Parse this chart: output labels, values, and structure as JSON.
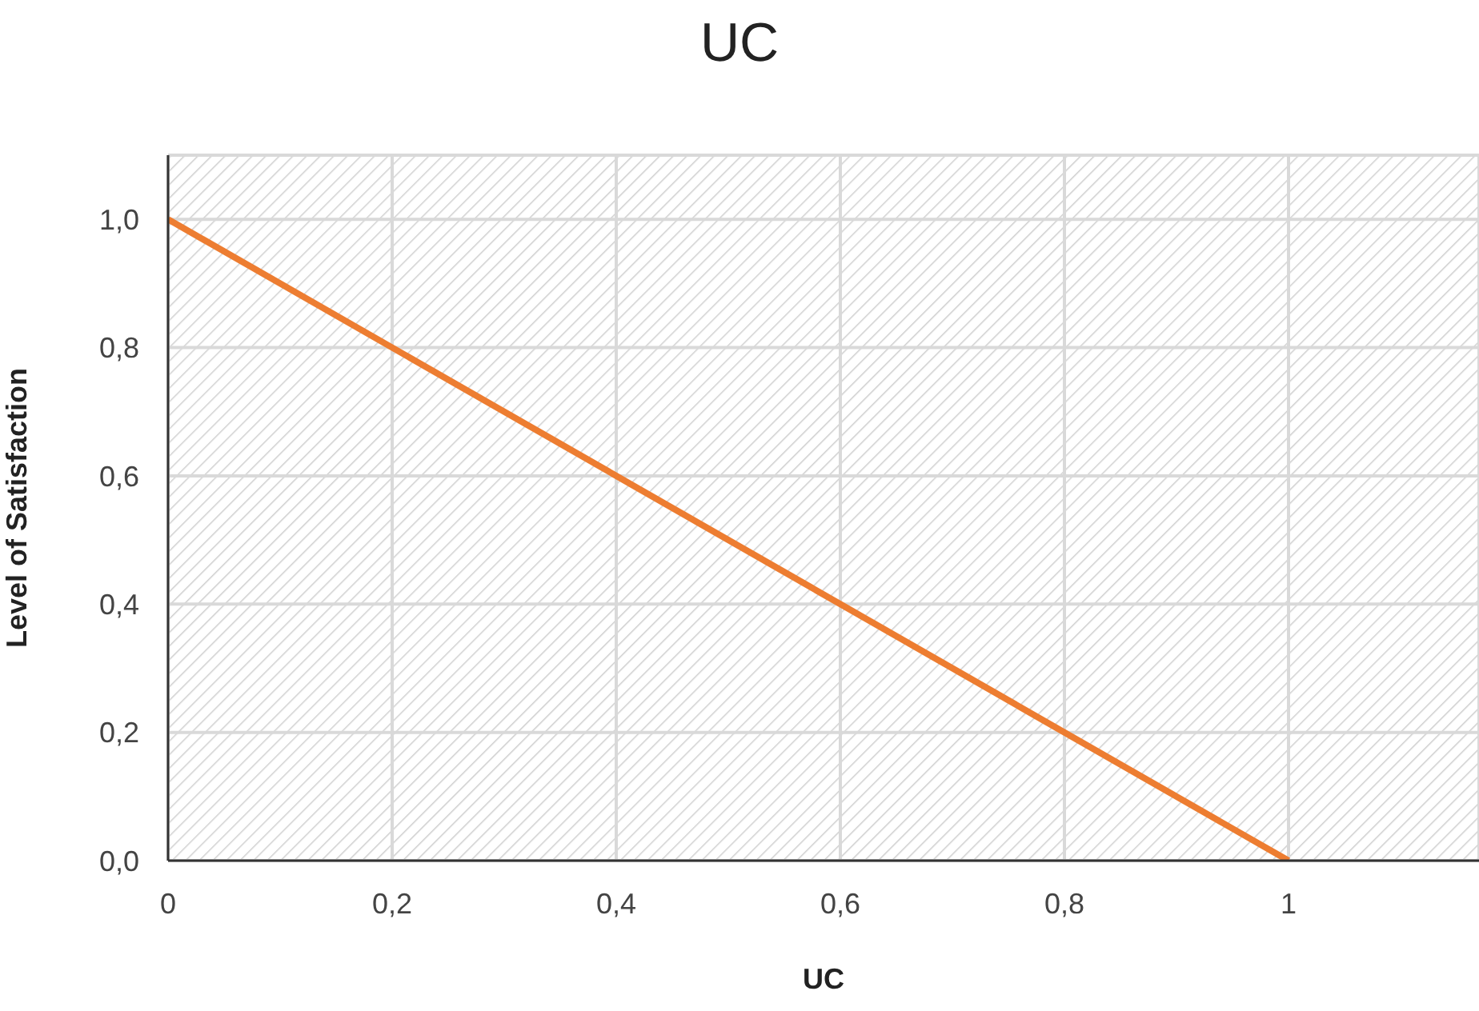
{
  "chart_data": {
    "type": "line",
    "title": "UC",
    "xlabel": "UC",
    "ylabel": "Level of Satisfaction",
    "x": [
      0,
      1
    ],
    "series": [
      {
        "color": "#ed7d31",
        "values": [
          1,
          0
        ]
      }
    ],
    "xlim": [
      0,
      1.17
    ],
    "xticks": [
      0,
      {
        "value": 0.2,
        "label": "0,2"
      },
      {
        "value": 0.4,
        "label": "0,4"
      },
      {
        "value": 0.6,
        "label": "0,6"
      },
      {
        "value": 0.8,
        "label": "0,8"
      },
      1
    ],
    "ylim": [
      0,
      1.1
    ],
    "yticks": [
      {
        "value": 0,
        "label": "0,0"
      },
      {
        "value": 0.2,
        "label": "0,2"
      },
      {
        "value": 0.4,
        "label": "0,4"
      },
      {
        "value": 0.6,
        "label": "0,6"
      },
      {
        "value": 0.8,
        "label": "0,8"
      },
      {
        "value": 1,
        "label": "1,0"
      }
    ],
    "grid": true,
    "marker": "none",
    "line_style": "solid",
    "legend": false
  }
}
